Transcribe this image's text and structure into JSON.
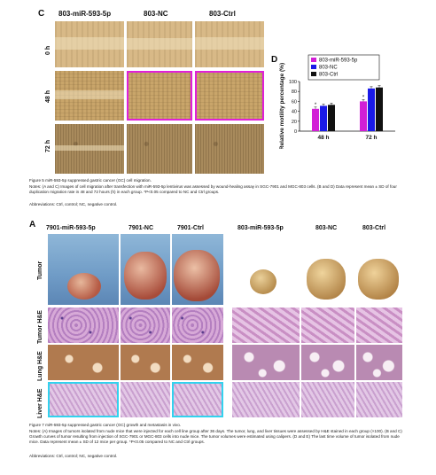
{
  "figure5": {
    "panel_c_label": "C",
    "panel_d_label": "D",
    "col_headers": [
      "803-miR-593-5p",
      "803-NC",
      "803-Ctrl"
    ],
    "row_labels": [
      "0 h",
      "48 h",
      "72 h"
    ],
    "chart_title_y": "Relative motility percentage (%)",
    "caption_title": "Figure 5 miR-593-5p suppressed gastric cancer (GC) cell migration.",
    "caption_notes": "Notes: (A and C) Images of cell migration after transfection with miR-593-5p lentivirus was assessed by wound-healing assay in SGC-7901 and MGC-803 cells. (B and D) Data represent mean ± SD of four duplication migration rate in 48 and 72 hours (h) in each group. *P<0.05 compared to NC and Ctrl groups.",
    "caption_abbrev": "Abbreviations: Ctrl, control; NC, negative control."
  },
  "chart_data": {
    "type": "bar",
    "categories": [
      "48 h",
      "72 h"
    ],
    "series": [
      {
        "name": "803-miR-593-5p",
        "values": [
          45,
          60
        ],
        "color": "#d21fd6"
      },
      {
        "name": "803-NC",
        "values": [
          51,
          86
        ],
        "color": "#1a1ae8"
      },
      {
        "name": "803-Ctrl",
        "values": [
          53,
          88
        ],
        "color": "#111111"
      }
    ],
    "ylabel": "Relative motility percentage (%)",
    "ylim": [
      0,
      100
    ],
    "yticks": [
      "0",
      "20",
      "40",
      "60",
      "80",
      "100"
    ],
    "significance_marker": "*",
    "legend_position": "top-left-inside"
  },
  "figure7": {
    "panel_label": "A",
    "col_headers_left": [
      "7901-miR-593-5p",
      "7901-NC",
      "7901-Ctrl"
    ],
    "col_headers_right": [
      "803-miR-593-5p",
      "803-NC",
      "803-Ctrl"
    ],
    "row_labels": [
      "Tumor",
      "Tumor H&E",
      "Lung H&E",
      "Liver H&E"
    ],
    "caption_title": "Figure 7 miR-593-5p suppressed gastric cancer (GC) growth and metastasis in vivo.",
    "caption_notes": "Notes: (A) Images of tumors isolated from nude mice that were injected for each cell line group after 36 days. The tumor, lung, and liver tissues were assessed by H&E stained in each group (×100). (B and C) Growth curves of tumor resulting from injection of SGC-7901 or MGC-803 cells into nude mice. The tumor volumes were estimated using calipers. (D and E) The last time volume of tumor isolated from nude mice. Data represent mean ± SD of 12 mice per group. *P<0.05 compared to NC and Ctrl groups.",
    "caption_abbrev": "Abbreviations: Ctrl, control; NC, negative control."
  }
}
